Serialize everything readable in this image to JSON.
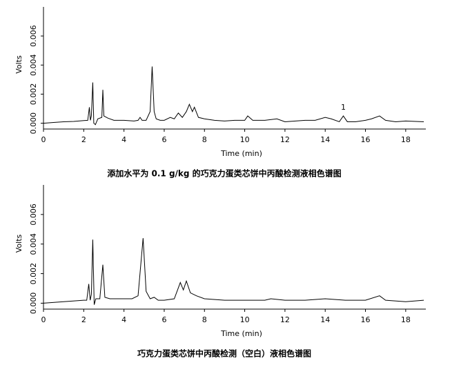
{
  "chart_data": [
    {
      "type": "line",
      "caption": "添加水平为 0.1 g/kg 的巧克力蛋类芯饼中丙酸检测液相色谱图",
      "xlabel": "Time (min)",
      "ylabel": "Volts",
      "color": "#000000",
      "xlim": [
        0,
        19
      ],
      "ylim": [
        -0.0004,
        0.008
      ],
      "xticks": [
        0,
        2,
        4,
        6,
        8,
        10,
        12,
        14,
        16,
        18
      ],
      "yticks": [
        {
          "value": 0,
          "label": "0.000"
        },
        {
          "value": 0.002,
          "label": "0.002"
        },
        {
          "value": 0.004,
          "label": "0.004"
        },
        {
          "value": 0.006,
          "label": "0.006"
        }
      ],
      "x": [
        0,
        0.5,
        1,
        1.5,
        2,
        2.2,
        2.28,
        2.33,
        2.38,
        2.45,
        2.5,
        2.58,
        2.7,
        2.9,
        2.95,
        3.0,
        3.2,
        3.5,
        4,
        4.5,
        4.7,
        4.8,
        4.9,
        5.1,
        5.3,
        5.4,
        5.5,
        5.6,
        5.8,
        6,
        6.3,
        6.5,
        6.7,
        6.9,
        7.1,
        7.25,
        7.4,
        7.5,
        7.7,
        8,
        8.5,
        9,
        9.5,
        10,
        10.15,
        10.4,
        11,
        11.6,
        12,
        13,
        13.5,
        14,
        14.3,
        14.7,
        14.9,
        15.1,
        15.5,
        16,
        16.3,
        16.7,
        17,
        17.5,
        18,
        18.9
      ],
      "values": [
        0,
        5e-05,
        0.0001,
        0.00012,
        0.00018,
        0.0002,
        0.0011,
        0.0002,
        0.0005,
        0.0028,
        0.0,
        -0.0001,
        0.0003,
        0.0004,
        0.0023,
        0.0005,
        0.00035,
        0.0002,
        0.0002,
        0.00015,
        0.0002,
        0.0004,
        0.0002,
        0.0002,
        0.0008,
        0.0039,
        0.0008,
        0.0003,
        0.0002,
        0.0002,
        0.0004,
        0.0003,
        0.0007,
        0.0004,
        0.0008,
        0.0013,
        0.0008,
        0.0011,
        0.0004,
        0.0003,
        0.0002,
        0.00015,
        0.0002,
        0.0002,
        0.0005,
        0.0002,
        0.0002,
        0.0003,
        0.0001,
        0.0002,
        0.0002,
        0.0004,
        0.0003,
        0.0001,
        0.0005,
        0.0001,
        0.0001,
        0.0002,
        0.0003,
        0.0005,
        0.0002,
        0.0001,
        0.00015,
        0.0001
      ],
      "annotations": [
        {
          "text": "1",
          "x": 14.9,
          "y": 0.0005
        }
      ]
    },
    {
      "type": "line",
      "caption": "巧克力蛋类芯饼中丙酸检测（空白）液相色谱图",
      "xlabel": "Time (min)",
      "ylabel": "Volts",
      "color": "#000000",
      "xlim": [
        0,
        19
      ],
      "ylim": [
        -0.0004,
        0.008
      ],
      "xticks": [
        0,
        2,
        4,
        6,
        8,
        10,
        12,
        14,
        16,
        18
      ],
      "yticks": [
        {
          "value": 0,
          "label": "0.000"
        },
        {
          "value": 0.002,
          "label": "0.002"
        },
        {
          "value": 0.004,
          "label": "0.004"
        },
        {
          "value": 0.006,
          "label": "0.006"
        }
      ],
      "x": [
        0,
        1,
        2,
        2.15,
        2.25,
        2.32,
        2.38,
        2.45,
        2.52,
        2.6,
        2.8,
        2.95,
        3.05,
        3.3,
        3.6,
        4,
        4.4,
        4.7,
        4.95,
        5.1,
        5.3,
        5.5,
        5.7,
        6,
        6.5,
        6.8,
        6.95,
        7.1,
        7.3,
        7.6,
        8,
        9,
        10,
        11,
        11.3,
        12,
        13,
        14,
        15,
        16,
        16.7,
        17,
        18,
        18.9
      ],
      "values": [
        0,
        0.0001,
        0.0002,
        0.0002,
        0.0013,
        0.0002,
        0.0006,
        0.0043,
        -0.0001,
        0.0003,
        0.0003,
        0.0026,
        0.0004,
        0.0003,
        0.0003,
        0.0003,
        0.0003,
        0.0005,
        0.0044,
        0.0008,
        0.0003,
        0.0004,
        0.0002,
        0.0002,
        0.0003,
        0.0014,
        0.0009,
        0.0015,
        0.0007,
        0.0005,
        0.0003,
        0.0002,
        0.0002,
        0.0002,
        0.0003,
        0.0002,
        0.0002,
        0.0003,
        0.0002,
        0.0002,
        0.0005,
        0.0002,
        0.0001,
        0.0002
      ]
    }
  ]
}
